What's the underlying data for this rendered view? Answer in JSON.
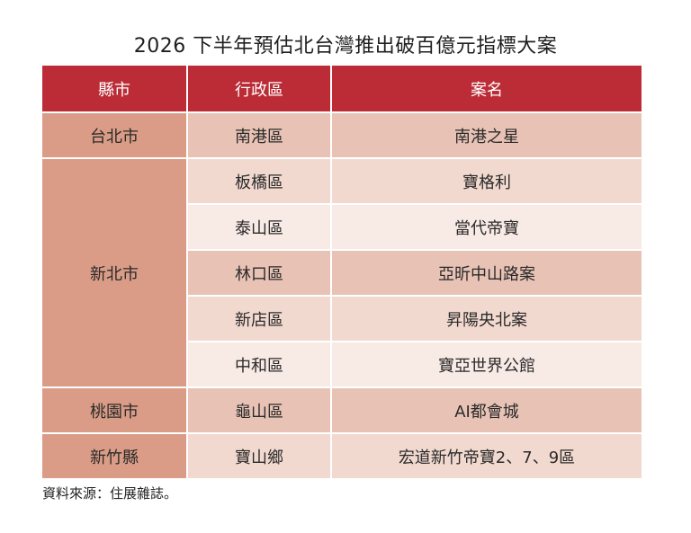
{
  "title": "2026 下半年預估北台灣推出破百億元指標大案",
  "table": {
    "headers": [
      "縣市",
      "行政區",
      "案名"
    ],
    "rows": [
      {
        "county": "台北市",
        "district": "南港區",
        "case": "南港之星"
      },
      {
        "county": "新北市",
        "district": "板橋區",
        "case": "寶格利"
      },
      {
        "county": "",
        "district": "泰山區",
        "case": "當代帝寶"
      },
      {
        "county": "",
        "district": "林口區",
        "case": "亞昕中山路案"
      },
      {
        "county": "",
        "district": "新店區",
        "case": "昇陽央北案"
      },
      {
        "county": "",
        "district": "中和區",
        "case": "寶亞世界公館"
      },
      {
        "county": "桃園市",
        "district": "龜山區",
        "case": "AI都會城"
      },
      {
        "county": "新竹縣",
        "district": "寶山鄉",
        "case": "宏道新竹帝寶2、7、9區"
      }
    ]
  },
  "source": "資料來源：住展雜誌。",
  "colors": {
    "header_bg": "#bb2c36",
    "county_bg": "#da9c86",
    "row_dark": "#e8c3b5",
    "row_mid": "#f2d9d0",
    "row_light": "#f8eae5"
  }
}
